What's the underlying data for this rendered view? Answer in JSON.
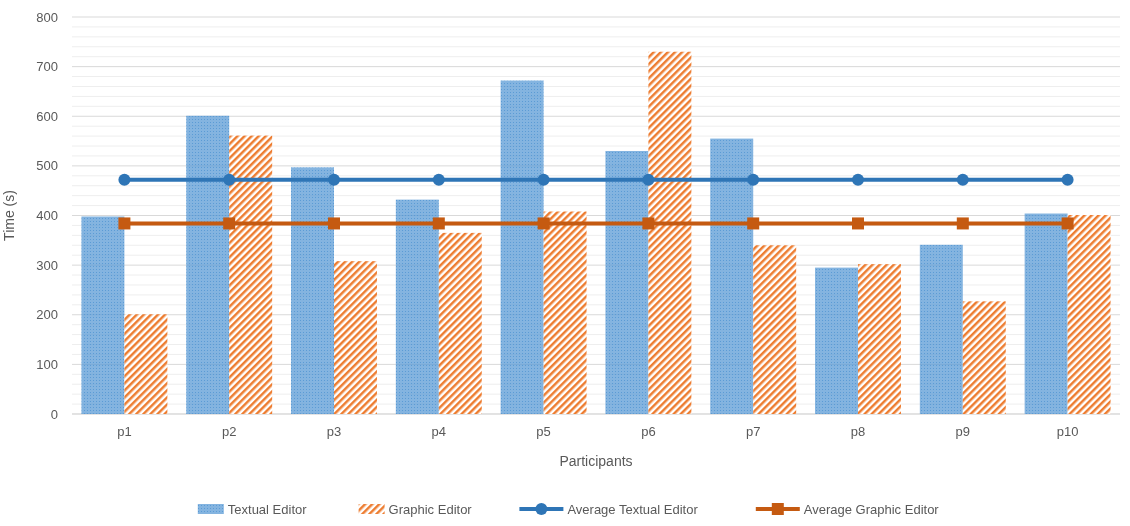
{
  "chart_data": {
    "type": "bar",
    "xlabel": "Participants",
    "ylabel": "Time (s)",
    "categories": [
      "p1",
      "p2",
      "p3",
      "p4",
      "p5",
      "p6",
      "p7",
      "p8",
      "p9",
      "p10"
    ],
    "series": [
      {
        "name": "Textual Editor",
        "color": "#5b9bd5",
        "values": [
          398,
          601,
          497,
          432,
          672,
          530,
          555,
          295,
          341,
          404
        ]
      },
      {
        "name": "Graphic Editor",
        "color": "#ed7d31",
        "values": [
          201,
          561,
          308,
          365,
          408,
          730,
          340,
          302,
          227,
          401
        ]
      },
      {
        "name": "Average Textual Editor",
        "type": "line",
        "marker": "circle",
        "color": "#2e75b6",
        "values": [
          472,
          472,
          472,
          472,
          472,
          472,
          472,
          472,
          472,
          472
        ]
      },
      {
        "name": "Average Graphic Editor",
        "type": "line",
        "marker": "square",
        "color": "#c55a11",
        "values": [
          384,
          384,
          384,
          384,
          384,
          384,
          384,
          384,
          384,
          384
        ]
      }
    ],
    "ylim": [
      0,
      800
    ],
    "yticks": [
      0,
      {
        "value": 20,
        "label": null
      },
      {
        "value": 40,
        "label": null
      },
      {
        "value": 60,
        "label": null
      },
      {
        "value": 80,
        "label": null
      },
      100,
      {
        "value": 120,
        "label": null
      },
      {
        "value": 140,
        "label": null
      },
      {
        "value": 160,
        "label": null
      },
      {
        "value": 180,
        "label": null
      },
      200,
      {
        "value": 220,
        "label": null
      },
      {
        "value": 240,
        "label": null
      },
      {
        "value": 260,
        "label": null
      },
      {
        "value": 280,
        "label": null
      },
      300,
      {
        "value": 320,
        "label": null
      },
      {
        "value": 340,
        "label": null
      },
      {
        "value": 360,
        "label": null
      },
      {
        "value": 380,
        "label": null
      },
      400,
      {
        "value": 420,
        "label": null
      },
      {
        "value": 440,
        "label": null
      },
      {
        "value": 460,
        "label": null
      },
      {
        "value": 480,
        "label": null
      },
      500,
      {
        "value": 520,
        "label": null
      },
      {
        "value": 540,
        "label": null
      },
      {
        "value": 560,
        "label": null
      },
      {
        "value": 580,
        "label": null
      },
      600,
      {
        "value": 620,
        "label": null
      },
      {
        "value": 640,
        "label": null
      },
      {
        "value": 660,
        "label": null
      },
      {
        "value": 680,
        "label": null
      },
      700,
      {
        "value": 720,
        "label": null
      },
      {
        "value": 740,
        "label": null
      },
      {
        "value": 760,
        "label": null
      },
      {
        "value": 780,
        "label": null
      },
      800
    ],
    "grid": "y",
    "legend": "bottom"
  }
}
